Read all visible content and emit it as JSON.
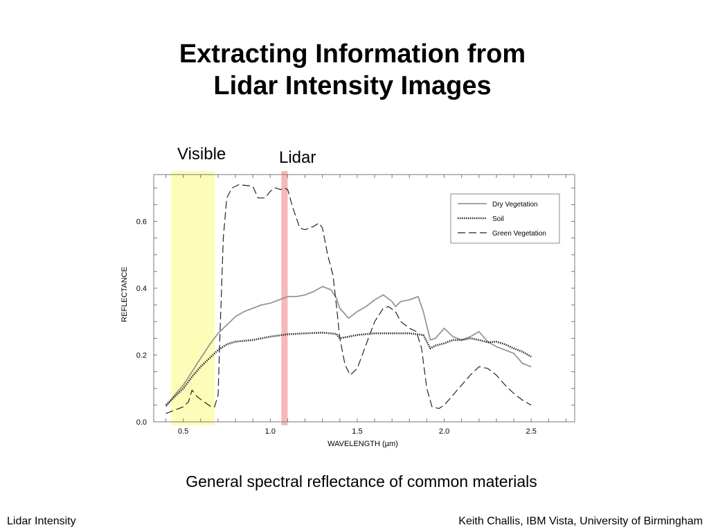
{
  "slide": {
    "title_line1": "Extracting Information from",
    "title_line2": "Lidar Intensity Images",
    "visible_label": "Visible",
    "lidar_label": "Lidar",
    "caption": "General spectral reflectance of common materials",
    "footer_left": "Lidar Intensity",
    "footer_right": "Keith Challis, IBM Vista, University of Birmingham"
  },
  "chart_data": {
    "type": "line",
    "title": "",
    "xlabel": "WAVELENGTH  (µm)",
    "ylabel": "REFLECTANCE",
    "xlim": [
      0.33,
      2.75
    ],
    "ylim": [
      0,
      0.74
    ],
    "xticks": [
      {
        "value": 0.5,
        "label": "0.5"
      },
      {
        "value": 1.0,
        "label": "1.0"
      },
      {
        "value": 1.5,
        "label": "1.5"
      },
      {
        "value": 2.0,
        "label": "2.0"
      },
      {
        "value": 2.5,
        "label": "2.5"
      }
    ],
    "yticks": [
      {
        "value": 0.0,
        "label": "0.0"
      },
      {
        "value": 0.2,
        "label": "0.2"
      },
      {
        "value": 0.4,
        "label": "0.4"
      },
      {
        "value": 0.6,
        "label": "0.6"
      }
    ],
    "bands": [
      {
        "name": "Visible",
        "from": 0.43,
        "to": 0.68,
        "color": "#fdfcb8"
      },
      {
        "name": "Lidar",
        "from": 1.064,
        "to": 1.1,
        "color": "#f6b8b8"
      }
    ],
    "legend_position": "top-right",
    "series": [
      {
        "name": "Dry Vegetation",
        "style": "solid",
        "color": "#9b958c",
        "x": [
          0.4,
          0.45,
          0.5,
          0.55,
          0.6,
          0.65,
          0.7,
          0.75,
          0.8,
          0.85,
          0.9,
          0.95,
          1.0,
          1.05,
          1.1,
          1.15,
          1.2,
          1.25,
          1.3,
          1.35,
          1.38,
          1.4,
          1.45,
          1.5,
          1.55,
          1.6,
          1.65,
          1.7,
          1.72,
          1.75,
          1.8,
          1.85,
          1.88,
          1.92,
          1.95,
          2.0,
          2.05,
          2.1,
          2.15,
          2.2,
          2.25,
          2.3,
          2.35,
          2.4,
          2.45,
          2.5
        ],
        "y": [
          0.045,
          0.08,
          0.11,
          0.15,
          0.19,
          0.23,
          0.265,
          0.29,
          0.315,
          0.33,
          0.34,
          0.35,
          0.355,
          0.365,
          0.375,
          0.375,
          0.38,
          0.39,
          0.405,
          0.395,
          0.37,
          0.34,
          0.31,
          0.33,
          0.345,
          0.365,
          0.38,
          0.36,
          0.345,
          0.36,
          0.365,
          0.375,
          0.33,
          0.245,
          0.25,
          0.28,
          0.255,
          0.245,
          0.255,
          0.27,
          0.24,
          0.225,
          0.215,
          0.205,
          0.175,
          0.165
        ]
      },
      {
        "name": "Soil",
        "style": "dotted",
        "color": "#222222",
        "x": [
          0.4,
          0.45,
          0.5,
          0.55,
          0.6,
          0.65,
          0.7,
          0.75,
          0.8,
          0.9,
          1.0,
          1.1,
          1.2,
          1.3,
          1.38,
          1.4,
          1.45,
          1.5,
          1.6,
          1.7,
          1.8,
          1.88,
          1.92,
          1.95,
          2.0,
          2.05,
          2.1,
          2.15,
          2.2,
          2.25,
          2.3,
          2.35,
          2.4,
          2.45,
          2.5
        ],
        "y": [
          0.05,
          0.075,
          0.1,
          0.135,
          0.165,
          0.19,
          0.215,
          0.232,
          0.24,
          0.245,
          0.255,
          0.262,
          0.265,
          0.267,
          0.263,
          0.25,
          0.255,
          0.26,
          0.265,
          0.265,
          0.265,
          0.26,
          0.22,
          0.228,
          0.235,
          0.245,
          0.245,
          0.25,
          0.245,
          0.238,
          0.24,
          0.232,
          0.22,
          0.21,
          0.195
        ]
      },
      {
        "name": "Green Vegetation",
        "style": "dashed",
        "color": "#222222",
        "x": [
          0.4,
          0.45,
          0.5,
          0.53,
          0.55,
          0.58,
          0.62,
          0.66,
          0.68,
          0.7,
          0.71,
          0.73,
          0.75,
          0.78,
          0.82,
          0.9,
          0.93,
          0.97,
          1.0,
          1.03,
          1.06,
          1.08,
          1.1,
          1.13,
          1.17,
          1.2,
          1.25,
          1.28,
          1.3,
          1.33,
          1.36,
          1.38,
          1.4,
          1.43,
          1.46,
          1.5,
          1.55,
          1.6,
          1.65,
          1.68,
          1.72,
          1.75,
          1.8,
          1.84,
          1.87,
          1.9,
          1.93,
          1.97,
          2.0,
          2.05,
          2.1,
          2.15,
          2.2,
          2.25,
          2.3,
          2.35,
          2.4,
          2.45,
          2.5
        ],
        "y": [
          0.025,
          0.035,
          0.045,
          0.06,
          0.095,
          0.075,
          0.06,
          0.045,
          0.045,
          0.08,
          0.25,
          0.55,
          0.67,
          0.7,
          0.71,
          0.705,
          0.67,
          0.67,
          0.69,
          0.7,
          0.695,
          0.7,
          0.695,
          0.64,
          0.58,
          0.575,
          0.585,
          0.595,
          0.58,
          0.5,
          0.44,
          0.35,
          0.25,
          0.17,
          0.14,
          0.16,
          0.23,
          0.3,
          0.34,
          0.345,
          0.33,
          0.3,
          0.28,
          0.27,
          0.22,
          0.1,
          0.045,
          0.04,
          0.05,
          0.08,
          0.11,
          0.14,
          0.165,
          0.16,
          0.14,
          0.11,
          0.085,
          0.065,
          0.05
        ]
      }
    ]
  }
}
